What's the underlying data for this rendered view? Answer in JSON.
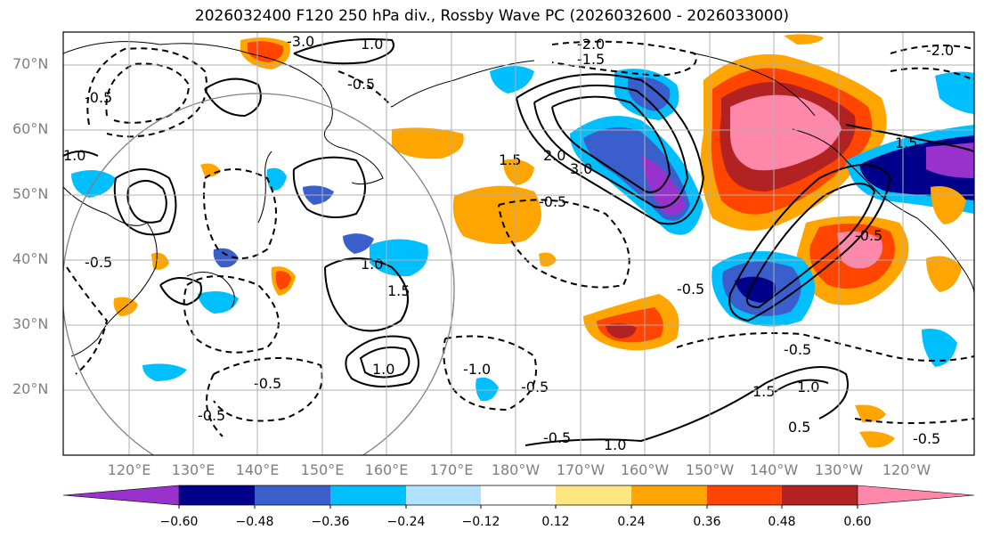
{
  "title": "2026032400 F120 250 hPa div., Rossby Wave PC (2026032600 - 2026033000)",
  "lat_labels": [
    "70°N",
    "60°N",
    "50°N",
    "40°N",
    "30°N",
    "20°N"
  ],
  "lon_labels": [
    "120°E",
    "130°E",
    "140°E",
    "150°E",
    "160°E",
    "170°E",
    "180°W",
    "170°W",
    "160°W",
    "150°W",
    "140°W",
    "130°W",
    "120°W"
  ],
  "colorbar": {
    "ticks": [
      "−0.60",
      "−0.48",
      "−0.36",
      "−0.24",
      "−0.12",
      "0.12",
      "0.24",
      "0.36",
      "0.48",
      "0.60"
    ],
    "colors": [
      "#9932cc",
      "#00008b",
      "#3a5fcd",
      "#00bfff",
      "#b0e2ff",
      "#ffffff",
      "#ffe680",
      "#ffa500",
      "#ff4500",
      "#b22222",
      "#ff88aa"
    ]
  },
  "contour_labels": {
    "positive": [
      "1.0",
      "1.5",
      "2.0",
      "3.0",
      "1.0",
      "1.5",
      "1.0",
      "1.5",
      "1.0",
      "1.0",
      "1.5",
      "1.0",
      "0.5"
    ],
    "negative": [
      "-3.0",
      "-2.0",
      "-1.5",
      "-0.5",
      "-0.5",
      "-0.5",
      "-2.0",
      "-0.5",
      "-0.5",
      "-0.5",
      "-0.5",
      "-0.5",
      "-0.5",
      "-0.5",
      "-0.5",
      "-1.0",
      "-0.5"
    ]
  },
  "colors": {
    "grid": "#b0b0b0",
    "axis_label": "#7f7f7f",
    "circle": "#808080"
  }
}
